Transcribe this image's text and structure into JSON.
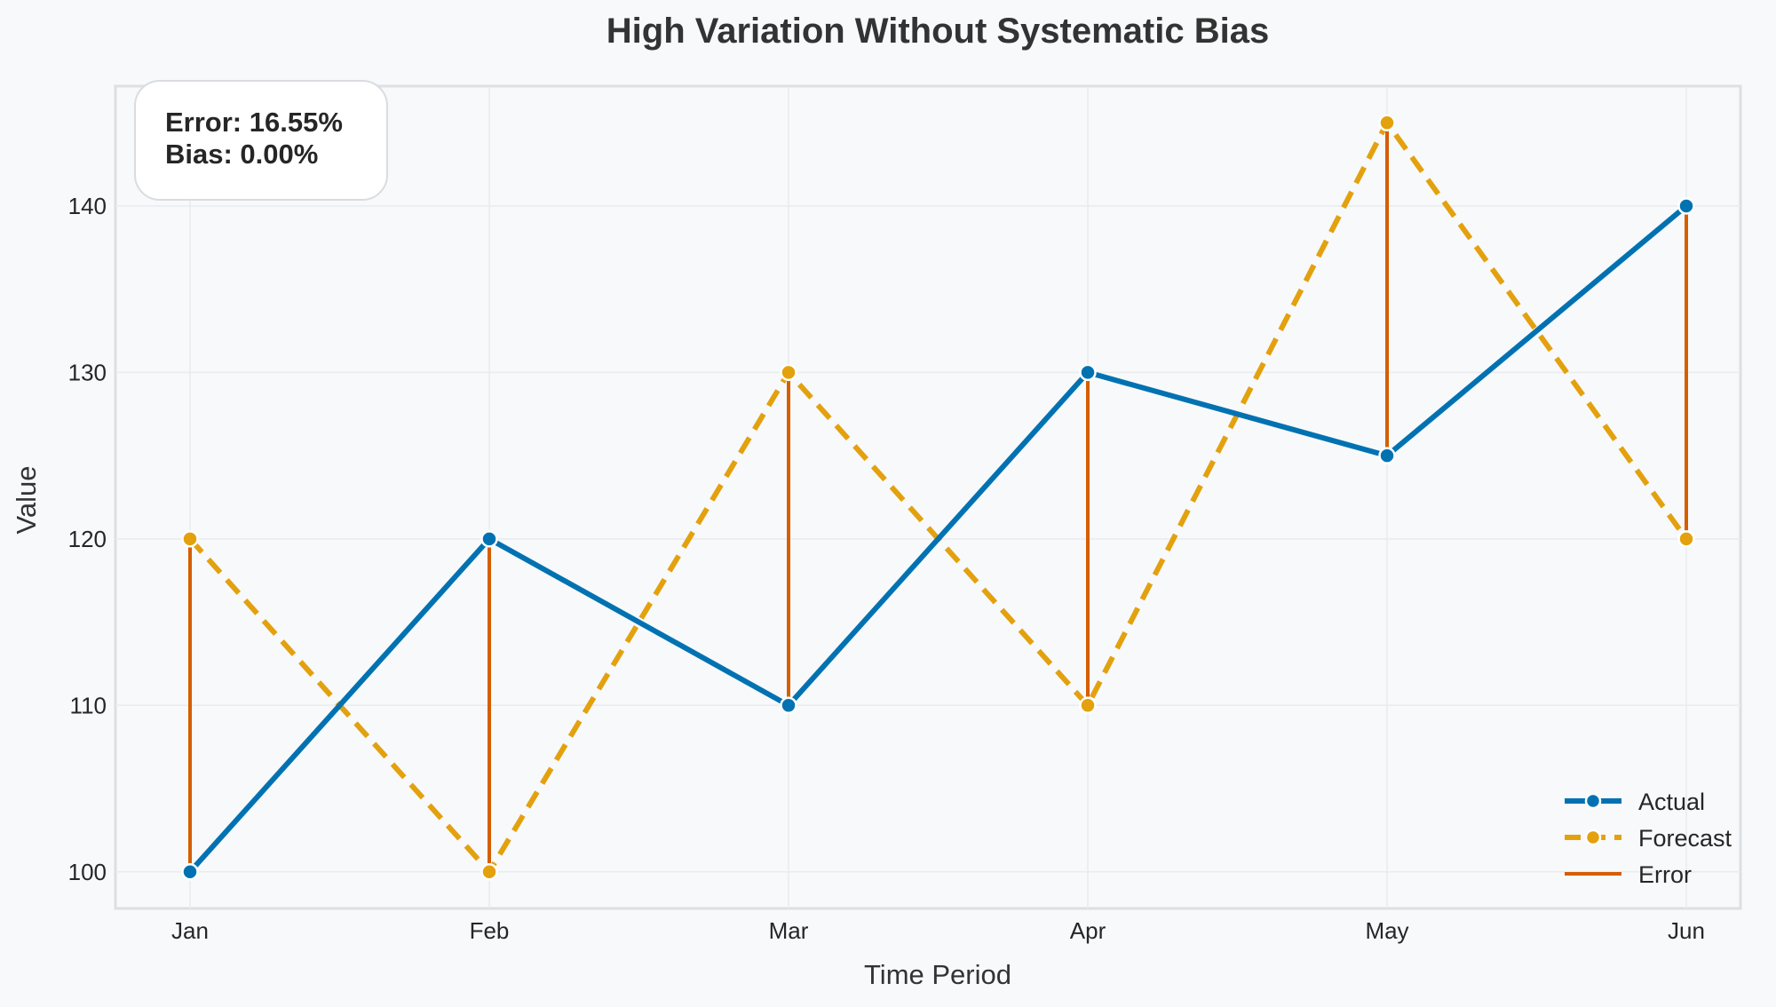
{
  "chart_data": {
    "type": "line",
    "title": "High Variation Without Systematic Bias",
    "xlabel": "Time Period",
    "ylabel": "Value",
    "categories": [
      "Jan",
      "Feb",
      "Mar",
      "Apr",
      "May",
      "Jun"
    ],
    "ylim": [
      97.8,
      147.2
    ],
    "yticks": [
      100,
      110,
      120,
      130,
      140
    ],
    "grid": true,
    "legend_position": "bottom-right",
    "series": [
      {
        "name": "Actual",
        "values": [
          100,
          120,
          110,
          130,
          125,
          140
        ],
        "color": "#0072b2",
        "style": "solid"
      },
      {
        "name": "Forecast",
        "values": [
          120,
          100,
          130,
          110,
          145,
          120
        ],
        "color": "#e3a10e",
        "style": "dashed"
      }
    ],
    "error_series": {
      "name": "Error",
      "color": "#d55e00"
    },
    "annotation": {
      "line1": "Error: 16.55%",
      "line2": "Bias: 0.00%"
    }
  }
}
